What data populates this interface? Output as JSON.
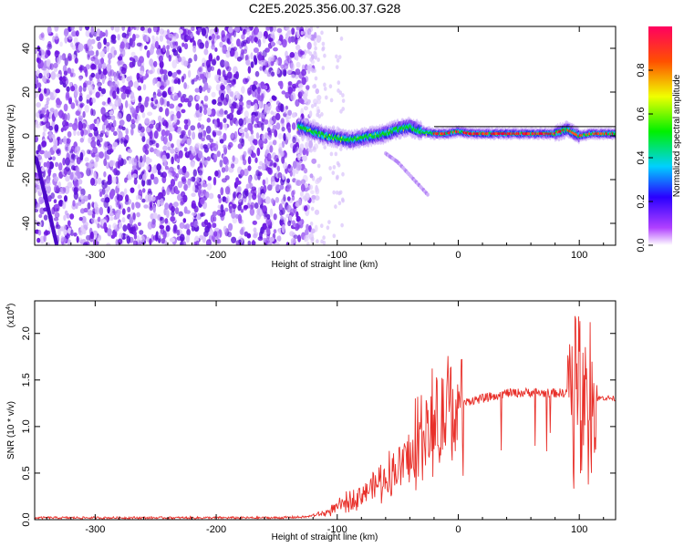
{
  "title": "C2E5.2025.356.00.37.G28",
  "colors": {
    "snr_line": "#e8302a",
    "signal_core": "#e8003a",
    "noise_dark": "#6a14e0",
    "noise_light": "#c8a8f8",
    "frame": "#000000"
  },
  "chart_data": [
    {
      "type": "heatmap",
      "name": "spectrogram",
      "xlabel": "Height of straight line (km)",
      "ylabel": "Frequency (Hz)",
      "xlim": [
        -350,
        130
      ],
      "ylim": [
        -50,
        50
      ],
      "xticks": [
        -300,
        -200,
        -100,
        0,
        100
      ],
      "yticks": [
        40,
        20,
        0,
        -20,
        -40
      ],
      "xtick_labels": [
        "-300",
        "-200",
        "-100",
        "0",
        "100"
      ],
      "ytick_labels": [
        "40",
        "20",
        "0",
        "-20",
        "-40"
      ],
      "colorbar": {
        "label": "Normalized spectral amplitude",
        "range": [
          0,
          1
        ],
        "ticks": [
          0.0,
          0.2,
          0.4,
          0.6,
          0.8
        ],
        "tick_labels": [
          "0.0",
          "0.2",
          "0.4",
          "0.6",
          "0.8"
        ]
      },
      "noise_region_x": [
        -350,
        -125
      ],
      "signal_trace": {
        "x": [
          -130,
          -120,
          -110,
          -100,
          -90,
          -80,
          -70,
          -60,
          -50,
          -40,
          -30,
          -20,
          -10,
          0,
          10,
          20,
          30,
          40,
          50,
          60,
          70,
          80,
          90,
          100,
          110,
          120,
          130
        ],
        "freq": [
          4,
          2,
          0,
          -1,
          -2,
          -1,
          0,
          1,
          3,
          4,
          2,
          1,
          1,
          2,
          1,
          1,
          1,
          1,
          1,
          1,
          1,
          1,
          3,
          0,
          1,
          1,
          1
        ]
      },
      "secondary_trace": {
        "x": [
          -60,
          -50,
          -40,
          -30,
          -25
        ],
        "freq": [
          -8,
          -12,
          -18,
          -24,
          -27
        ]
      }
    },
    {
      "type": "line",
      "name": "snr",
      "xlabel": "Height of straight line (km)",
      "ylabel": "SNR (10 * v/v)",
      "y_multiplier": "(x10",
      "y_multiplier_exp": "4",
      "y_multiplier_close": ")",
      "xlim": [
        -350,
        130
      ],
      "ylim": [
        0,
        2.35
      ],
      "xticks": [
        -300,
        -200,
        -100,
        0,
        100
      ],
      "yticks": [
        0.0,
        0.5,
        1.0,
        1.5,
        2.0
      ],
      "xtick_labels": [
        "-300",
        "-200",
        "-100",
        "0",
        "100"
      ],
      "ytick_labels": [
        "0.0",
        "0.5",
        "1.0",
        "1.5",
        "2.0"
      ],
      "series": [
        {
          "name": "SNR",
          "x": [
            -350,
            -300,
            -250,
            -200,
            -150,
            -125,
            -110,
            -100,
            -90,
            -80,
            -70,
            -60,
            -50,
            -40,
            -30,
            -20,
            -10,
            0,
            10,
            20,
            30,
            40,
            50,
            60,
            70,
            80,
            90,
            95,
            100,
            105,
            110,
            115,
            120,
            130
          ],
          "y": [
            0.02,
            0.02,
            0.02,
            0.02,
            0.02,
            0.03,
            0.07,
            0.13,
            0.2,
            0.28,
            0.36,
            0.45,
            0.55,
            0.68,
            0.82,
            0.96,
            1.1,
            1.22,
            1.28,
            1.3,
            1.33,
            1.36,
            1.36,
            1.37,
            1.36,
            1.36,
            1.36,
            1.25,
            1.3,
            1.35,
            1.32,
            1.3,
            1.31,
            1.3
          ]
        }
      ]
    }
  ]
}
